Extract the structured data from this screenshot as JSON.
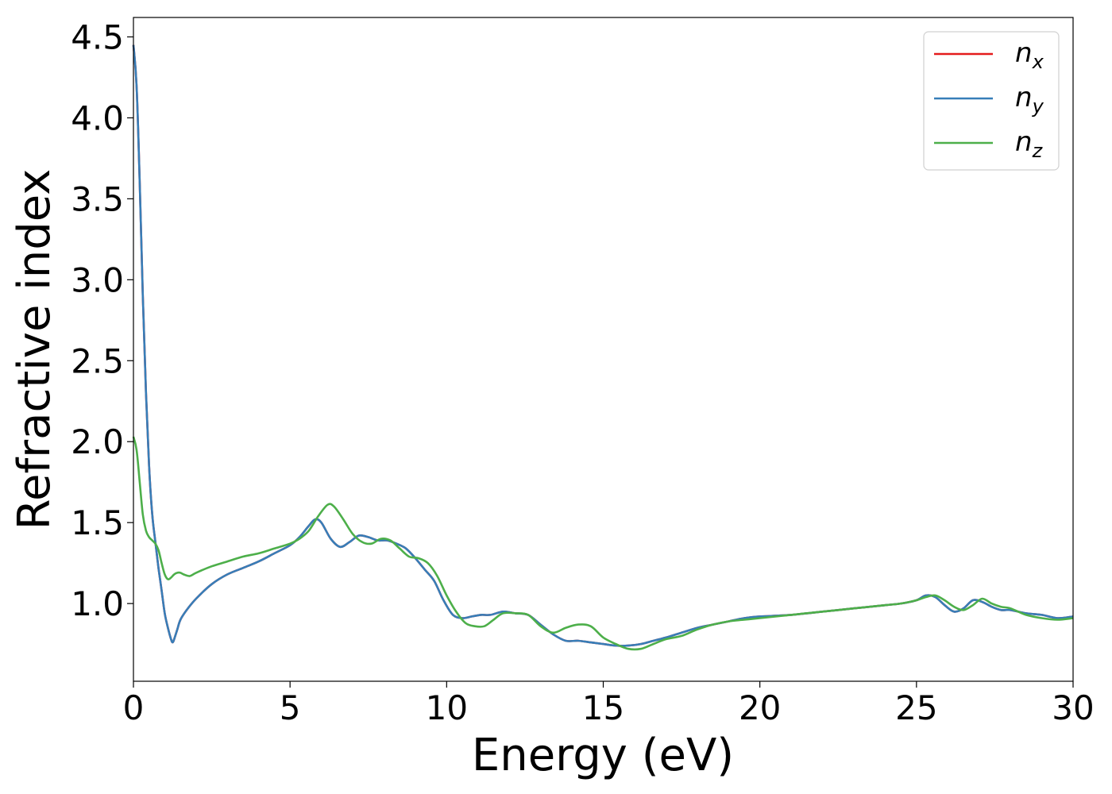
{
  "chart_data": {
    "type": "line",
    "title": "",
    "xlabel": "Energy (eV)",
    "ylabel": "Refractive index",
    "xlim": [
      0,
      30
    ],
    "ylim": [
      0.52,
      4.62
    ],
    "xticks": [
      0,
      5,
      10,
      15,
      20,
      25,
      30
    ],
    "yticks": [
      1.0,
      1.5,
      2.0,
      2.5,
      3.0,
      3.5,
      4.0,
      4.5
    ],
    "grid": false,
    "legend_position": "top-right",
    "series": [
      {
        "name": "n_x",
        "label_base": "n",
        "label_sub": "x",
        "color": "#e41a1c",
        "x": [
          0,
          0.1,
          0.2,
          0.3,
          0.4,
          0.5,
          0.6,
          0.7,
          0.8,
          0.9,
          1.0,
          1.1,
          1.2,
          1.25,
          1.3,
          1.4,
          1.5,
          1.7,
          2.0,
          2.5,
          3.0,
          3.5,
          4.0,
          4.5,
          5.0,
          5.3,
          5.6,
          5.8,
          6.0,
          6.3,
          6.6,
          6.9,
          7.2,
          7.5,
          7.8,
          8.1,
          8.4,
          8.7,
          9.0,
          9.3,
          9.6,
          9.9,
          10.2,
          10.5,
          10.8,
          11.1,
          11.4,
          11.8,
          12.2,
          12.6,
          13.0,
          13.4,
          13.8,
          14.2,
          14.6,
          15.0,
          15.4,
          15.8,
          16.2,
          16.6,
          17.0,
          17.5,
          18.0,
          18.5,
          19.0,
          19.5,
          20.0,
          21.0,
          22.0,
          23.0,
          24.0,
          24.5,
          25.0,
          25.3,
          25.6,
          25.9,
          26.2,
          26.5,
          26.8,
          27.1,
          27.4,
          27.7,
          28.0,
          28.5,
          29.0,
          29.5,
          30.0
        ],
        "y": [
          4.45,
          4.2,
          3.6,
          2.9,
          2.3,
          1.85,
          1.55,
          1.38,
          1.22,
          1.08,
          0.94,
          0.85,
          0.78,
          0.76,
          0.78,
          0.84,
          0.9,
          0.96,
          1.03,
          1.12,
          1.18,
          1.22,
          1.26,
          1.31,
          1.36,
          1.41,
          1.48,
          1.52,
          1.5,
          1.4,
          1.35,
          1.38,
          1.42,
          1.41,
          1.39,
          1.39,
          1.37,
          1.34,
          1.28,
          1.21,
          1.14,
          1.02,
          0.93,
          0.91,
          0.92,
          0.93,
          0.93,
          0.95,
          0.94,
          0.93,
          0.87,
          0.81,
          0.77,
          0.77,
          0.76,
          0.75,
          0.74,
          0.74,
          0.75,
          0.77,
          0.79,
          0.82,
          0.85,
          0.87,
          0.89,
          0.91,
          0.92,
          0.93,
          0.95,
          0.97,
          0.99,
          1.0,
          1.02,
          1.05,
          1.04,
          0.99,
          0.95,
          0.97,
          1.02,
          1.01,
          0.98,
          0.96,
          0.96,
          0.94,
          0.93,
          0.91,
          0.92
        ]
      },
      {
        "name": "n_y",
        "label_base": "n",
        "label_sub": "y",
        "color": "#377eb8",
        "x": [
          0,
          0.1,
          0.2,
          0.3,
          0.4,
          0.5,
          0.6,
          0.7,
          0.8,
          0.9,
          1.0,
          1.1,
          1.2,
          1.25,
          1.3,
          1.4,
          1.5,
          1.7,
          2.0,
          2.5,
          3.0,
          3.5,
          4.0,
          4.5,
          5.0,
          5.3,
          5.6,
          5.8,
          6.0,
          6.3,
          6.6,
          6.9,
          7.2,
          7.5,
          7.8,
          8.1,
          8.4,
          8.7,
          9.0,
          9.3,
          9.6,
          9.9,
          10.2,
          10.5,
          10.8,
          11.1,
          11.4,
          11.8,
          12.2,
          12.6,
          13.0,
          13.4,
          13.8,
          14.2,
          14.6,
          15.0,
          15.4,
          15.8,
          16.2,
          16.6,
          17.0,
          17.5,
          18.0,
          18.5,
          19.0,
          19.5,
          20.0,
          21.0,
          22.0,
          23.0,
          24.0,
          24.5,
          25.0,
          25.3,
          25.6,
          25.9,
          26.2,
          26.5,
          26.8,
          27.1,
          27.4,
          27.7,
          28.0,
          28.5,
          29.0,
          29.5,
          30.0
        ],
        "y": [
          4.45,
          4.2,
          3.6,
          2.9,
          2.3,
          1.85,
          1.55,
          1.38,
          1.22,
          1.08,
          0.94,
          0.85,
          0.78,
          0.76,
          0.78,
          0.84,
          0.9,
          0.96,
          1.03,
          1.12,
          1.18,
          1.22,
          1.26,
          1.31,
          1.36,
          1.41,
          1.48,
          1.52,
          1.5,
          1.4,
          1.35,
          1.38,
          1.42,
          1.41,
          1.39,
          1.39,
          1.37,
          1.34,
          1.28,
          1.21,
          1.14,
          1.02,
          0.93,
          0.91,
          0.92,
          0.93,
          0.93,
          0.95,
          0.94,
          0.93,
          0.87,
          0.81,
          0.77,
          0.77,
          0.76,
          0.75,
          0.74,
          0.74,
          0.75,
          0.77,
          0.79,
          0.82,
          0.85,
          0.87,
          0.89,
          0.91,
          0.92,
          0.93,
          0.95,
          0.97,
          0.99,
          1.0,
          1.02,
          1.05,
          1.04,
          0.99,
          0.95,
          0.97,
          1.02,
          1.01,
          0.98,
          0.96,
          0.96,
          0.94,
          0.93,
          0.91,
          0.92
        ]
      },
      {
        "name": "n_z",
        "label_base": "n",
        "label_sub": "z",
        "color": "#4daf4a",
        "x": [
          0,
          0.1,
          0.2,
          0.3,
          0.4,
          0.5,
          0.6,
          0.7,
          0.8,
          0.9,
          1.0,
          1.1,
          1.2,
          1.3,
          1.4,
          1.5,
          1.6,
          1.8,
          2.0,
          2.5,
          3.0,
          3.5,
          4.0,
          4.5,
          5.0,
          5.3,
          5.6,
          5.9,
          6.2,
          6.4,
          6.7,
          7.0,
          7.3,
          7.6,
          7.9,
          8.2,
          8.5,
          8.8,
          9.1,
          9.4,
          9.7,
          10.0,
          10.3,
          10.6,
          10.9,
          11.2,
          11.5,
          11.8,
          12.2,
          12.6,
          13.0,
          13.4,
          13.8,
          14.2,
          14.6,
          15.0,
          15.4,
          15.8,
          16.2,
          16.6,
          17.0,
          17.5,
          18.0,
          18.5,
          19.0,
          19.5,
          20.0,
          21.0,
          22.0,
          23.0,
          24.0,
          24.5,
          25.0,
          25.3,
          25.6,
          25.9,
          26.2,
          26.5,
          26.8,
          27.1,
          27.4,
          27.7,
          28.0,
          28.5,
          29.0,
          29.5,
          30.0
        ],
        "y": [
          2.03,
          1.95,
          1.75,
          1.55,
          1.45,
          1.41,
          1.39,
          1.37,
          1.33,
          1.25,
          1.18,
          1.15,
          1.16,
          1.18,
          1.19,
          1.19,
          1.18,
          1.17,
          1.19,
          1.23,
          1.26,
          1.29,
          1.31,
          1.34,
          1.37,
          1.4,
          1.45,
          1.54,
          1.61,
          1.6,
          1.52,
          1.43,
          1.38,
          1.37,
          1.4,
          1.39,
          1.34,
          1.29,
          1.28,
          1.25,
          1.17,
          1.05,
          0.95,
          0.88,
          0.86,
          0.86,
          0.9,
          0.94,
          0.94,
          0.93,
          0.86,
          0.82,
          0.85,
          0.87,
          0.86,
          0.79,
          0.75,
          0.72,
          0.72,
          0.75,
          0.78,
          0.8,
          0.84,
          0.87,
          0.89,
          0.9,
          0.91,
          0.93,
          0.95,
          0.97,
          0.99,
          1.0,
          1.02,
          1.04,
          1.05,
          1.02,
          0.98,
          0.96,
          0.99,
          1.03,
          1.0,
          0.98,
          0.97,
          0.93,
          0.91,
          0.9,
          0.91
        ]
      }
    ]
  }
}
